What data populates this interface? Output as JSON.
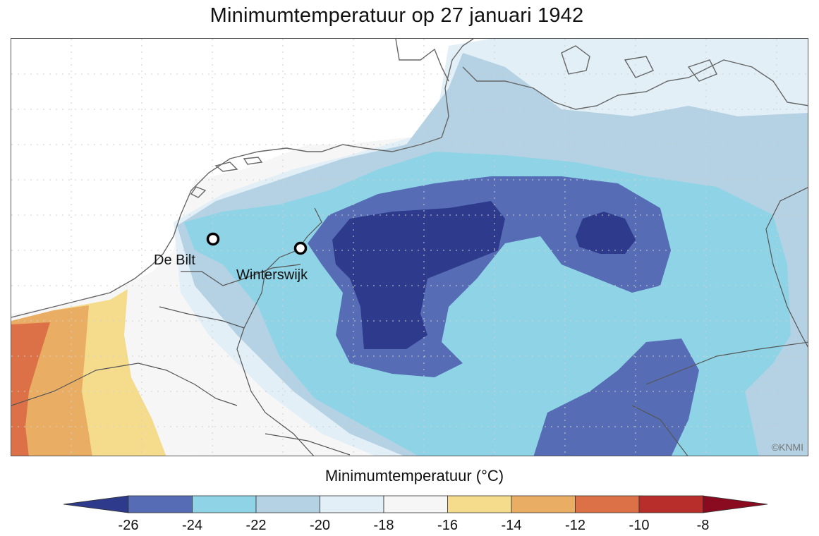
{
  "title": "Minimumtemperatuur op 27 januari 1942",
  "stations": [
    {
      "name": "De Bilt"
    },
    {
      "name": "Winterswijk"
    }
  ],
  "copyright": "©KNMI",
  "colorbar": {
    "title": "Minimumtemperatuur (°C)",
    "ticks": [
      "-26",
      "-24",
      "-22",
      "-20",
      "-18",
      "-16",
      "-14",
      "-12",
      "-10",
      "-8"
    ],
    "colors": {
      "below_-26": "#2e3a8c",
      "-26_-24": "#566db5",
      "-24_-22": "#8fd4e6",
      "-22_-20": "#b4d2e3",
      "-20_-18": "#e2eff6",
      "-18_-16": "#f6f6f6",
      "-16_-14": "#f4dc8c",
      "-14_-12": "#e9ad63",
      "-12_-10": "#dc7148",
      "-10_-8": "#b72e2b",
      "above_-8": "#8a0a1f"
    }
  }
}
